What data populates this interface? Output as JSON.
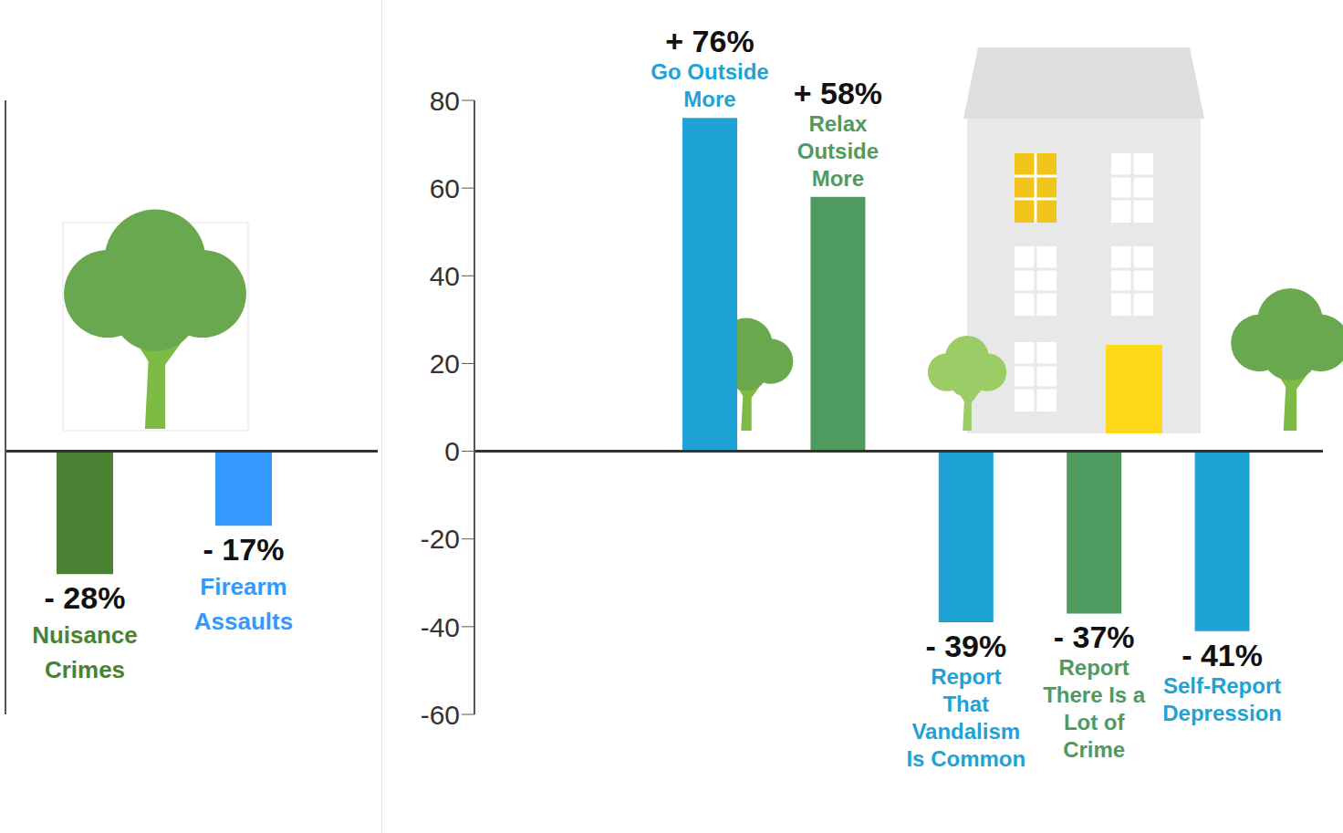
{
  "chart_data": [
    {
      "type": "bar",
      "categories": [
        "Nuisance Crimes",
        "Firearm Assaults"
      ],
      "values": [
        -28,
        -17
      ],
      "value_labels": [
        "- 28%",
        "- 17%"
      ],
      "colors": [
        "#4a8234",
        "#3399ff"
      ],
      "ylim": [
        -60,
        80
      ],
      "tick_labels": false,
      "data_labels": true,
      "grid": false
    },
    {
      "type": "bar",
      "categories": [
        "Go Outside More",
        "Relax Outside More",
        "Report That Vandalism Is Common",
        "Report There Is a Lot of Crime",
        "Self-Report Depression"
      ],
      "values": [
        76,
        58,
        -39,
        -37,
        -41
      ],
      "value_labels": [
        "+ 76%",
        "+ 58%",
        "- 39%",
        "- 37%",
        "- 41%"
      ],
      "colors": [
        "#1fa3d6",
        "#4f9a5f",
        "#1fa3d6",
        "#4f9a5f",
        "#1fa3d6"
      ],
      "ylim": [
        -60,
        80
      ],
      "yticks": [
        -60,
        -40,
        -20,
        0,
        20,
        40,
        60,
        80
      ],
      "tick_labels": "y",
      "data_labels": true,
      "grid": false
    }
  ]
}
